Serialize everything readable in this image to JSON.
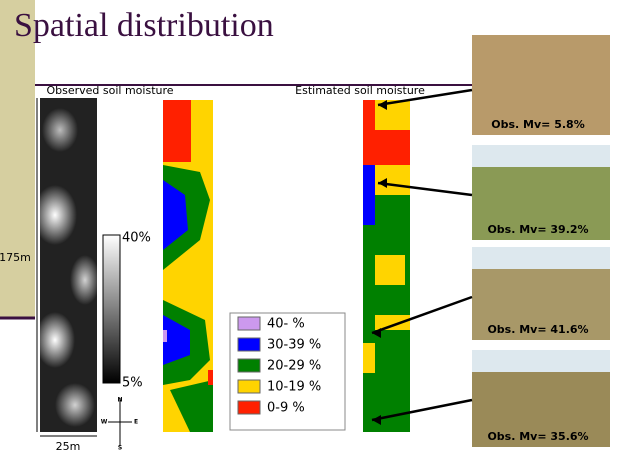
{
  "header": {
    "title": "Spatial distribution"
  },
  "panels": {
    "observed": "Observed soil moisture",
    "estimated": "Estimated soil moisture"
  },
  "scale": {
    "height": "175m",
    "width": "25m",
    "bar_max": "40%",
    "bar_min": "5%"
  },
  "compass": {
    "north": "N",
    "west": "W",
    "east": "E",
    "south": "S"
  },
  "legend": [
    {
      "label": "40- %",
      "color": "#cc99ee"
    },
    {
      "label": "30-39 %",
      "color": "#0000ff"
    },
    {
      "label": "20-29 %",
      "color": "#008000"
    },
    {
      "label": "10-19 %",
      "color": "#ffd400"
    },
    {
      "label": "0-9 %",
      "color": "#ff2000"
    }
  ],
  "photos": [
    "Obs. Mv= 5.8%",
    "Obs. Mv= 39.2%",
    "Obs. Mv= 41.6%",
    "Obs. Mv= 35.6%"
  ]
}
